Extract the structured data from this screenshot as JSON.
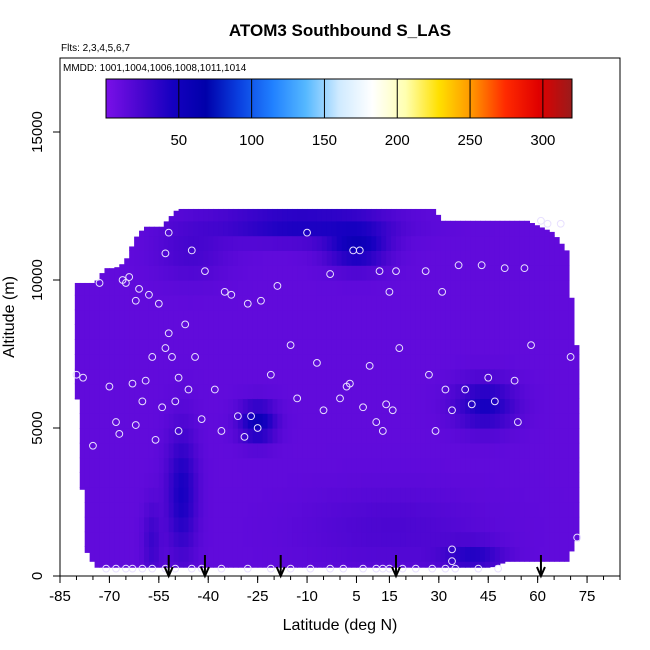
{
  "chart_data": {
    "type": "heatmap",
    "title": "ATOM3 Southbound S_LAS",
    "subtitle_lines": [
      "Flts: 2,3,4,5,6,7",
      "MMDD: 1001,1004,1006,1008,1011,1014"
    ],
    "xlabel": "Latitude (deg N)",
    "ylabel": "Altitude (m)",
    "xlim": [
      -85,
      85
    ],
    "ylim": [
      0,
      17500
    ],
    "x_ticks": [
      -85,
      -70,
      -55,
      -40,
      -25,
      -10,
      5,
      15,
      30,
      45,
      60,
      75
    ],
    "y_ticks": [
      0,
      5000,
      10000,
      15000
    ],
    "colorbar": {
      "range": [
        0,
        320
      ],
      "ticks": [
        50,
        100,
        150,
        200,
        250,
        300
      ],
      "colors": [
        "#7a10e8",
        "#4a06d0",
        "#1500c0",
        "#0000aa",
        "#0a40e0",
        "#2080ff",
        "#55b8ff",
        "#cfeaff",
        "#ffffff",
        "#ffffb0",
        "#ffe000",
        "#ff9500",
        "#ff2a00",
        "#e00000",
        "#9a1b1b"
      ]
    },
    "field_color_default": "#8b20ea",
    "coverage": [
      [
        -81,
        7000,
        9900
      ],
      [
        -78,
        900,
        9900
      ],
      [
        -75,
        300,
        9900
      ],
      [
        -72,
        300,
        10400
      ],
      [
        -69,
        300,
        10400
      ],
      [
        -66,
        300,
        10600
      ],
      [
        -63,
        300,
        11400
      ],
      [
        -60,
        300,
        11800
      ],
      [
        -55,
        300,
        11800
      ],
      [
        -50,
        300,
        12400
      ],
      [
        -40,
        300,
        12400
      ],
      [
        -20,
        300,
        12400
      ],
      [
        0,
        300,
        12400
      ],
      [
        20,
        300,
        12400
      ],
      [
        28,
        300,
        12400
      ],
      [
        30,
        300,
        12000
      ],
      [
        45,
        300,
        12000
      ],
      [
        50,
        500,
        12000
      ],
      [
        56,
        500,
        12000
      ],
      [
        60,
        500,
        11800
      ],
      [
        64,
        500,
        11600
      ],
      [
        68,
        500,
        11000
      ],
      [
        71,
        1200,
        7800
      ],
      [
        72,
        1200,
        7800
      ]
    ],
    "low_regions": [
      {
        "x": -45,
        "y": 11000,
        "rx": 12,
        "ry": 1100,
        "v": 25
      },
      {
        "x": -12,
        "y": 11900,
        "rx": 28,
        "ry": 600,
        "v": 45
      },
      {
        "x": 16,
        "y": 1600,
        "rx": 30,
        "ry": 1500,
        "v": 22
      },
      {
        "x": 40,
        "y": 700,
        "rx": 10,
        "ry": 500,
        "v": 40
      },
      {
        "x": 44,
        "y": 5800,
        "rx": 10,
        "ry": 900,
        "v": 45
      },
      {
        "x": -48,
        "y": 2800,
        "rx": 5,
        "ry": 2300,
        "v": 45
      },
      {
        "x": -57,
        "y": 1200,
        "rx": 3,
        "ry": 1400,
        "v": 30
      },
      {
        "x": 5,
        "y": 11200,
        "rx": 10,
        "ry": 800,
        "v": 55
      },
      {
        "x": -25,
        "y": 5200,
        "rx": 6,
        "ry": 700,
        "v": 55
      }
    ],
    "sample_points": [
      [
        -80,
        6800
      ],
      [
        -78,
        6700
      ],
      [
        -75,
        4400
      ],
      [
        -73,
        9900
      ],
      [
        -70,
        6400
      ],
      [
        -68,
        5200
      ],
      [
        -67,
        4800
      ],
      [
        -66,
        10000
      ],
      [
        -65,
        9900
      ],
      [
        -64,
        10100
      ],
      [
        -63,
        6500
      ],
      [
        -62,
        5100
      ],
      [
        -62,
        9300
      ],
      [
        -61,
        9700
      ],
      [
        -60,
        5900
      ],
      [
        -59,
        6600
      ],
      [
        -58,
        9500
      ],
      [
        -57,
        7400
      ],
      [
        -56,
        4600
      ],
      [
        -55,
        9200
      ],
      [
        -54,
        5700
      ],
      [
        -53,
        7700
      ],
      [
        -53,
        10900
      ],
      [
        -52,
        8200
      ],
      [
        -52,
        11600
      ],
      [
        -51,
        7400
      ],
      [
        -50,
        5900
      ],
      [
        -49,
        4900
      ],
      [
        -49,
        6700
      ],
      [
        -47,
        8500
      ],
      [
        -46,
        6300
      ],
      [
        -45,
        11000
      ],
      [
        -44,
        7400
      ],
      [
        -42,
        5300
      ],
      [
        -41,
        10300
      ],
      [
        -38,
        6300
      ],
      [
        -36,
        4900
      ],
      [
        -35,
        9600
      ],
      [
        -33,
        9500
      ],
      [
        -31,
        5400
      ],
      [
        -29,
        4700
      ],
      [
        -28,
        9200
      ],
      [
        -27,
        5400
      ],
      [
        -25,
        5000
      ],
      [
        -24,
        9300
      ],
      [
        -21,
        6800
      ],
      [
        -19,
        9800
      ],
      [
        -15,
        7800
      ],
      [
        -13,
        6000
      ],
      [
        -10,
        11600
      ],
      [
        -7,
        7200
      ],
      [
        -5,
        5600
      ],
      [
        -3,
        10200
      ],
      [
        0,
        6000
      ],
      [
        2,
        6400
      ],
      [
        3,
        6500
      ],
      [
        4,
        11000
      ],
      [
        6,
        11000
      ],
      [
        7,
        5700
      ],
      [
        9,
        7100
      ],
      [
        11,
        5200
      ],
      [
        12,
        10300
      ],
      [
        13,
        4900
      ],
      [
        14,
        5800
      ],
      [
        15,
        9600
      ],
      [
        16,
        5600
      ],
      [
        17,
        10300
      ],
      [
        18,
        7700
      ],
      [
        26,
        10300
      ],
      [
        27,
        6800
      ],
      [
        29,
        4900
      ],
      [
        31,
        9600
      ],
      [
        32,
        6300
      ],
      [
        34,
        5600
      ],
      [
        36,
        10500
      ],
      [
        38,
        6300
      ],
      [
        40,
        5800
      ],
      [
        43,
        10500
      ],
      [
        45,
        6700
      ],
      [
        47,
        5900
      ],
      [
        50,
        10400
      ],
      [
        53,
        6600
      ],
      [
        54,
        5200
      ],
      [
        56,
        10400
      ],
      [
        58,
        7800
      ],
      [
        61,
        12000
      ],
      [
        63,
        11900
      ],
      [
        67,
        11900
      ],
      [
        70,
        7400
      ],
      [
        72,
        1300
      ],
      [
        34,
        900
      ],
      [
        34,
        500
      ]
    ],
    "surface_points_x": [
      -71,
      -68,
      -65,
      -63,
      -60,
      -57,
      -53,
      -50,
      -45,
      -42,
      -36,
      -28,
      -21,
      -15,
      -9,
      -3,
      1,
      7,
      11,
      13,
      15,
      19,
      23,
      28,
      32,
      35,
      42,
      48
    ],
    "profile_markers_x": [
      -52,
      -41,
      -18,
      17,
      61
    ]
  }
}
